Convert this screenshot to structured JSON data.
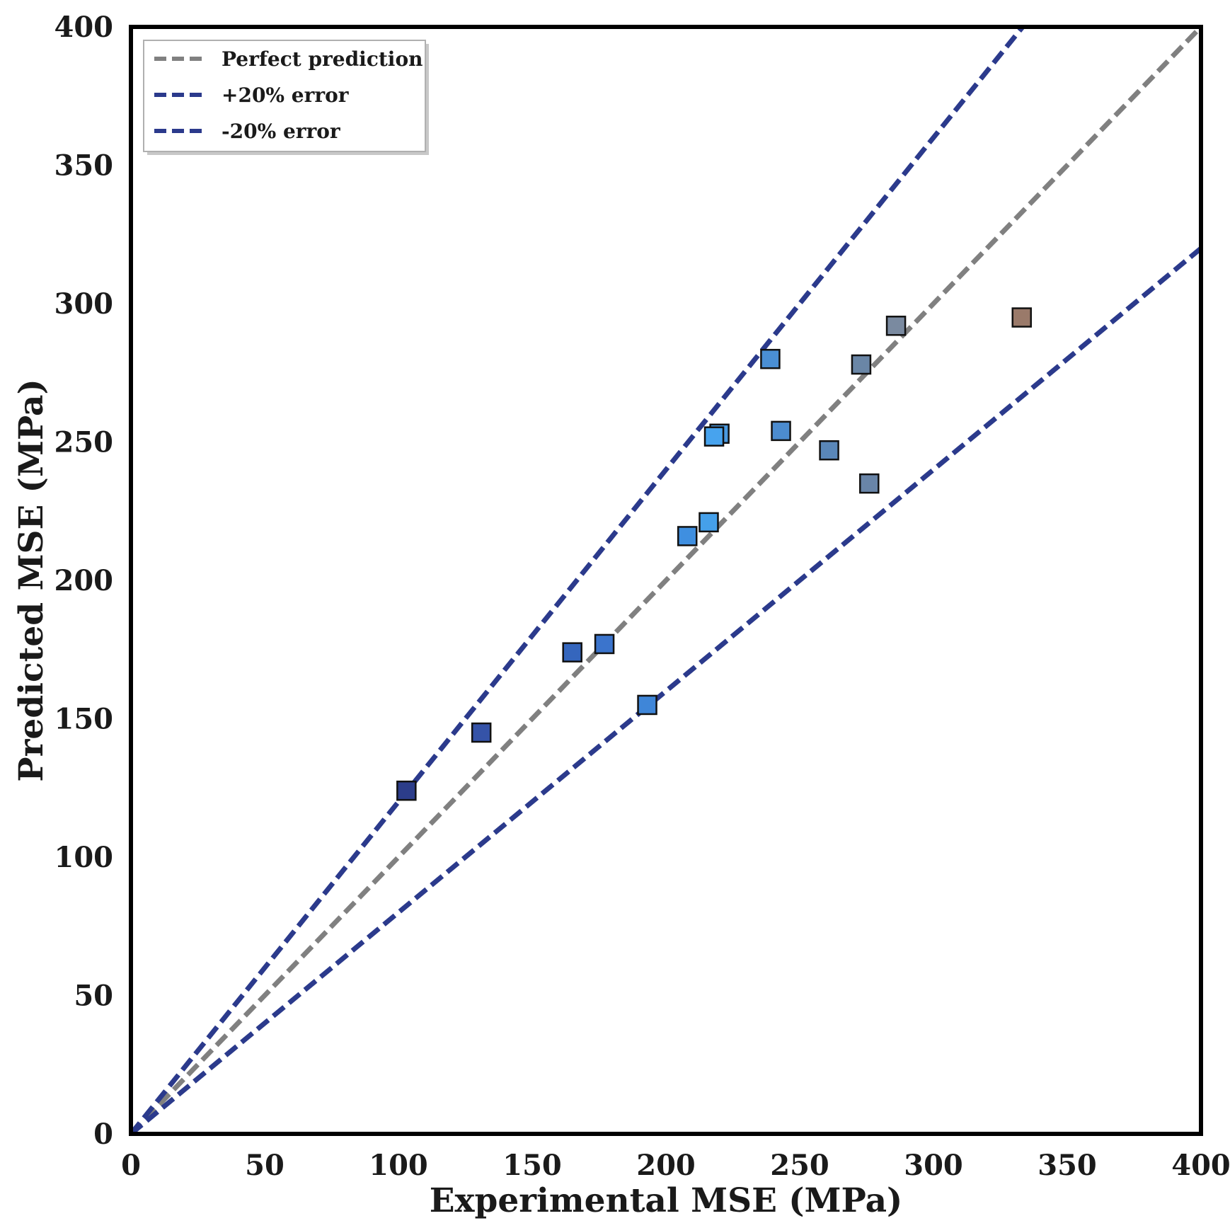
{
  "chart_data": {
    "type": "scatter",
    "title": "",
    "xlabel": "Experimental MSE (MPa)",
    "ylabel": "Predicted MSE (MPa)",
    "xlim": [
      0,
      400
    ],
    "ylim": [
      0,
      400
    ],
    "xticks": [
      "0",
      "50",
      "100",
      "150",
      "200",
      "250",
      "300",
      "350",
      "400"
    ],
    "yticks": [
      "0",
      "50",
      "100",
      "150",
      "200",
      "250",
      "300",
      "350",
      "400"
    ],
    "grid": false,
    "legend_position": "top-left",
    "reference_lines": [
      {
        "name": "Perfect prediction",
        "slope": 1.0,
        "color": "#808080",
        "style": "dashed"
      },
      {
        "name": "+20% error",
        "slope": 1.2,
        "color": "#2b3a8c",
        "style": "dashed"
      },
      {
        "name": "-20% error",
        "slope": 0.8,
        "color": "#2b3a8c",
        "style": "dashed"
      }
    ],
    "points": [
      {
        "x": 103,
        "y": 124,
        "color": "#2c3d8a"
      },
      {
        "x": 131,
        "y": 145,
        "color": "#3553a8"
      },
      {
        "x": 165,
        "y": 174,
        "color": "#3566bd"
      },
      {
        "x": 177,
        "y": 177,
        "color": "#3b74cc"
      },
      {
        "x": 193,
        "y": 155,
        "color": "#3f86d8"
      },
      {
        "x": 208,
        "y": 216,
        "color": "#3f8fe0"
      },
      {
        "x": 216,
        "y": 221,
        "color": "#45a0ea"
      },
      {
        "x": 220,
        "y": 253,
        "color": "#4a9ae0"
      },
      {
        "x": 218,
        "y": 252,
        "color": "#47a3ee"
      },
      {
        "x": 239,
        "y": 280,
        "color": "#4a8fd4"
      },
      {
        "x": 243,
        "y": 254,
        "color": "#4c8ccf"
      },
      {
        "x": 261,
        "y": 247,
        "color": "#5a87b8"
      },
      {
        "x": 273,
        "y": 278,
        "color": "#6a86a6"
      },
      {
        "x": 276,
        "y": 235,
        "color": "#6985a8"
      },
      {
        "x": 286,
        "y": 292,
        "color": "#7a8aa0"
      },
      {
        "x": 333,
        "y": 295,
        "color": "#9a7a6a"
      }
    ]
  }
}
